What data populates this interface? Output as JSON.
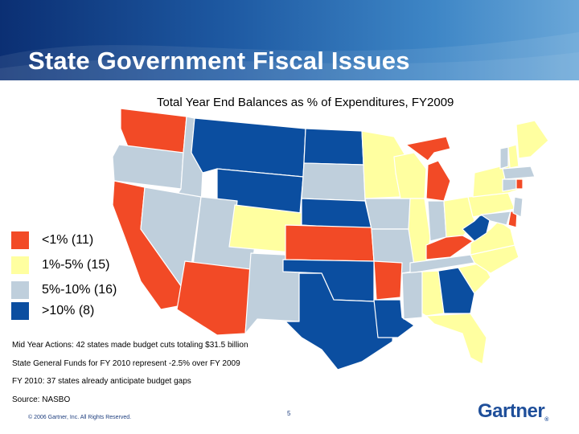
{
  "header": {
    "title": "State Government Fiscal Issues"
  },
  "map": {
    "subtitle": "Total Year End Balances as % of Expenditures, FY2009",
    "colors": {
      "lt1": "#f24a26",
      "1to5": "#ffffa0",
      "5to10": "#bfcfdc",
      "gt10": "#0b4ea0"
    },
    "legend": [
      {
        "key": "lt1",
        "label": "<1% (11)"
      },
      {
        "key": "1to5",
        "label": "1%-5% (15)"
      },
      {
        "key": "5to10",
        "label": "5%-10% (16)"
      },
      {
        "key": "gt10",
        "label": ">10% (8)"
      }
    ]
  },
  "notes": [
    "Mid Year Actions:  42 states made budget cuts totaling $31.5 billion",
    "State General Funds for FY 2010 represent -2.5% over FY 2009",
    "FY 2010:  37 states already anticipate budget gaps",
    "Source:  NASBO"
  ],
  "footer": {
    "copyright": "© 2006 Gartner, Inc. All Rights Reserved.",
    "page": "5",
    "logo": "Gartner"
  }
}
